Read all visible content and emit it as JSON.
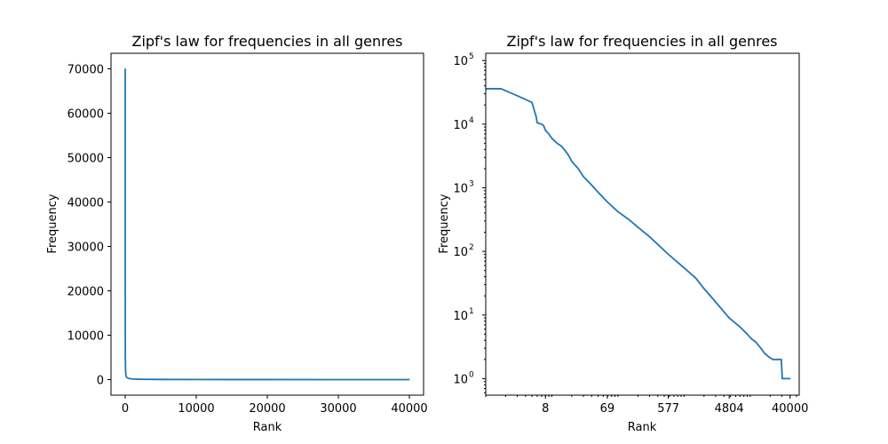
{
  "chart_data": [
    {
      "type": "line",
      "title": "Zipf's law for frequencies in all genres",
      "xlabel": "Rank",
      "ylabel": "Frequency",
      "xscale": "linear",
      "yscale": "linear",
      "xlim": [
        -2000,
        42000
      ],
      "ylim": [
        -3500,
        73500
      ],
      "xticks": [
        0,
        10000,
        20000,
        30000,
        40000
      ],
      "xtick_labels": [
        "0",
        "10000",
        "20000",
        "30000",
        "40000"
      ],
      "yticks": [
        0,
        10000,
        20000,
        30000,
        40000,
        50000,
        60000,
        70000
      ],
      "ytick_labels": [
        "0",
        "10000",
        "20000",
        "30000",
        "40000",
        "50000",
        "60000",
        "70000"
      ],
      "grid": false,
      "line_color": "#1f77b4",
      "series": [
        {
          "x": [
            1,
            2,
            5,
            10,
            20,
            50,
            100,
            200,
            500,
            1000,
            2000,
            5000,
            10000,
            20000,
            30000,
            40000
          ],
          "values": [
            70000,
            36000,
            19000,
            10000,
            5000,
            2000,
            1000,
            500,
            250,
            150,
            90,
            40,
            20,
            8,
            3,
            1
          ]
        }
      ]
    },
    {
      "type": "line",
      "title": "Zipf's law for frequencies in all genres",
      "xlabel": "Rank",
      "ylabel": "Frequency",
      "xscale": "log",
      "yscale": "log",
      "xlim": [
        1,
        55000
      ],
      "ylim": [
        0.55,
        130000
      ],
      "xticks": [
        8,
        69,
        577,
        4804,
        40000
      ],
      "xtick_labels": [
        "8",
        "69",
        "577",
        "4804",
        "40000"
      ],
      "yticks": [
        1,
        10,
        100,
        1000,
        10000,
        100000
      ],
      "ytick_labels": [
        {
          "base": "10",
          "exp": "0"
        },
        {
          "base": "10",
          "exp": "1"
        },
        {
          "base": "10",
          "exp": "2"
        },
        {
          "base": "10",
          "exp": "3"
        },
        {
          "base": "10",
          "exp": "4"
        },
        {
          "base": "10",
          "exp": "5"
        }
      ],
      "grid": false,
      "line_color": "#1f77b4",
      "series": [
        {
          "x": [
            1,
            1.7,
            3,
            5,
            5.8,
            6,
            7,
            7.5,
            8,
            9,
            10,
            12,
            14,
            16,
            18,
            20,
            25,
            30,
            40,
            50,
            69,
            100,
            150,
            200,
            300,
            577,
            1000,
            1500,
            2000,
            3000,
            4804,
            7000,
            9000,
            10500,
            12000,
            14500,
            16500,
            19000,
            22000,
            26000,
            29500,
            30500,
            35000,
            40000
          ],
          "values": [
            36000,
            36000,
            28000,
            22000,
            13000,
            10500,
            10000,
            9500,
            8000,
            7000,
            6000,
            5000,
            4500,
            3800,
            3200,
            2600,
            2000,
            1500,
            1100,
            850,
            600,
            420,
            310,
            240,
            170,
            90,
            55,
            38,
            26,
            16,
            9,
            6.5,
            5,
            4.2,
            3.8,
            3,
            2.5,
            2.2,
            2,
            2,
            2,
            1,
            1,
            1
          ]
        }
      ]
    }
  ]
}
